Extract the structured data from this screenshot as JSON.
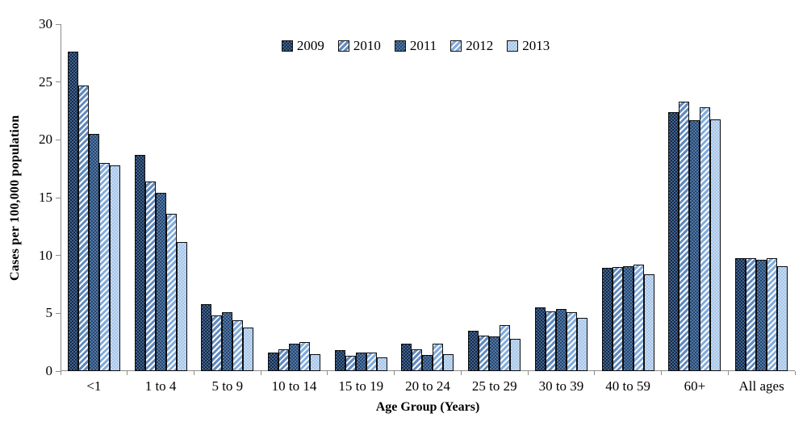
{
  "chart_data": {
    "type": "bar",
    "title": "",
    "xlabel": "Age Group (Years)",
    "ylabel": "Cases per 100,000 population",
    "ylim": [
      0,
      30
    ],
    "ytick_step": 5,
    "grid": false,
    "legend_position": "top-center",
    "axis_color": "#8C8C8C",
    "text_color": "#000000",
    "categories": [
      "<1",
      "1 to 4",
      "5 to 9",
      "10 to 14",
      "15 to 19",
      "20 to 24",
      "25 to 29",
      "30 to 39",
      "40 to 59",
      "60+",
      "All ages"
    ],
    "series": [
      {
        "name": "2009",
        "pattern": "checker",
        "base": "#182A45",
        "accent": "#3E6391",
        "values": [
          27.6,
          18.7,
          5.8,
          1.6,
          1.8,
          2.4,
          3.5,
          5.5,
          8.9,
          22.4,
          9.8
        ]
      },
      {
        "name": "2010",
        "pattern": "stripe",
        "base": "#FFFFFF",
        "accent": "#6189BC",
        "values": [
          24.7,
          16.4,
          4.8,
          1.9,
          1.3,
          1.9,
          3.1,
          5.2,
          9.0,
          23.3,
          9.8
        ]
      },
      {
        "name": "2011",
        "pattern": "checker",
        "base": "#27476F",
        "accent": "#5277A4",
        "values": [
          20.5,
          15.4,
          5.1,
          2.4,
          1.6,
          1.4,
          3.0,
          5.4,
          9.1,
          21.7,
          9.6
        ]
      },
      {
        "name": "2012",
        "pattern": "stripe",
        "base": "#FFFFFF",
        "accent": "#82ABDB",
        "values": [
          18.0,
          13.6,
          4.4,
          2.5,
          1.6,
          2.4,
          4.0,
          5.1,
          9.2,
          22.8,
          9.8
        ]
      },
      {
        "name": "2013",
        "pattern": "checker",
        "base": "#A6C5E8",
        "accent": "#C6DAF1",
        "values": [
          17.8,
          11.2,
          3.8,
          1.5,
          1.2,
          1.5,
          2.8,
          4.6,
          8.4,
          21.8,
          9.1
        ]
      }
    ]
  }
}
